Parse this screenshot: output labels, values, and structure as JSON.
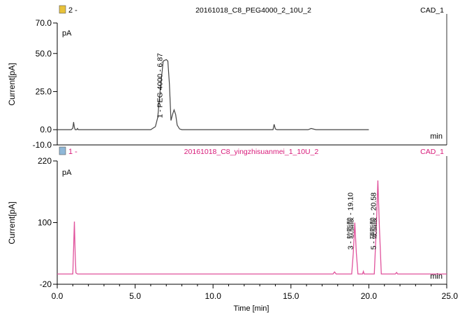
{
  "colors": {
    "top_trace": "#444444",
    "bottom_trace": "#e0529c",
    "axis": "#000000",
    "bottom_title": "#d81b7a"
  },
  "chart_data": [
    {
      "type": "line",
      "panel_id": "2 -",
      "title": "20161018_C8_PEG4000_2_10U_2",
      "detector": "CAD_1",
      "unit_label": "pA",
      "ylabel": "Current[pA]",
      "xunit": "min",
      "xlim": [
        0,
        20
      ],
      "ylim": [
        -10,
        70
      ],
      "yticks": [
        -10.0,
        0.0,
        25.0,
        50.0,
        70.0
      ],
      "ytick_labels": [
        "-10.0",
        "0.0",
        "25.0",
        "50.0",
        "70.0"
      ],
      "peak_labels": [
        {
          "x": 6.87,
          "text": "1 - PEG 4000 - 6.87"
        }
      ],
      "series": [
        {
          "x": [
            0.0,
            0.9,
            1.0,
            1.05,
            1.1,
            1.15,
            1.25,
            1.3,
            1.35,
            1.45,
            1.6,
            5.0,
            6.0,
            6.3,
            6.45,
            6.6,
            6.8,
            7.0,
            7.1,
            7.2,
            7.3,
            7.4,
            7.5,
            7.6,
            7.7,
            7.85,
            8.0,
            8.5,
            10.0,
            13.85,
            13.92,
            14.0,
            14.1,
            15.5,
            16.1,
            16.3,
            16.6,
            18.0,
            20.0
          ],
          "y": [
            0.0,
            0.0,
            1.0,
            5.0,
            1.5,
            0.0,
            0.0,
            0.8,
            0.0,
            0.0,
            0.0,
            0.0,
            0.0,
            2.0,
            8.0,
            25.0,
            45.0,
            46.0,
            45.0,
            30.0,
            6.0,
            10.0,
            13.0,
            10.0,
            3.0,
            0.5,
            0.0,
            0.0,
            0.0,
            0.0,
            3.5,
            0.5,
            0.0,
            0.0,
            0.0,
            0.8,
            0.0,
            0.0,
            0.0
          ]
        }
      ]
    },
    {
      "type": "line",
      "panel_id": "1 -",
      "title": "20161018_C8_yingzhisuanmei_1_10U_2",
      "detector": "CAD_1",
      "unit_label": "pA",
      "ylabel": "Current[pA]",
      "xlabel": "Time [min]",
      "xunit": "min",
      "xlim": [
        0,
        25
      ],
      "ylim": [
        -20,
        220
      ],
      "yticks": [
        -20,
        100,
        220
      ],
      "ytick_labels": [
        "-20",
        "100",
        "220"
      ],
      "xticks": [
        0,
        5,
        10,
        15,
        20,
        25
      ],
      "xtick_labels": [
        "0.0",
        "5.0",
        "10.0",
        "15.0",
        "20.0",
        "25.0"
      ],
      "peak_labels": [
        {
          "x": 19.1,
          "text": "3 - 软脂酸 - 19.10"
        },
        {
          "x": 20.58,
          "text": "5 - 硬脂酸 - 20.58"
        }
      ],
      "series": [
        {
          "x": [
            0.0,
            1.0,
            1.05,
            1.1,
            1.15,
            1.2,
            1.3,
            17.7,
            17.8,
            17.9,
            18.9,
            19.0,
            19.1,
            19.2,
            19.3,
            19.6,
            19.65,
            19.7,
            20.35,
            20.48,
            20.58,
            20.68,
            20.8,
            21.7,
            21.78,
            21.85,
            25.0
          ],
          "y": [
            0.0,
            0.0,
            50.0,
            102.0,
            40.0,
            2.0,
            0.0,
            0.0,
            4.0,
            0.0,
            0.0,
            40.0,
            100.0,
            40.0,
            0.0,
            0.0,
            5.0,
            0.0,
            0.0,
            90.0,
            182.0,
            90.0,
            0.0,
            0.0,
            3.0,
            0.0,
            0.0
          ]
        }
      ]
    }
  ]
}
